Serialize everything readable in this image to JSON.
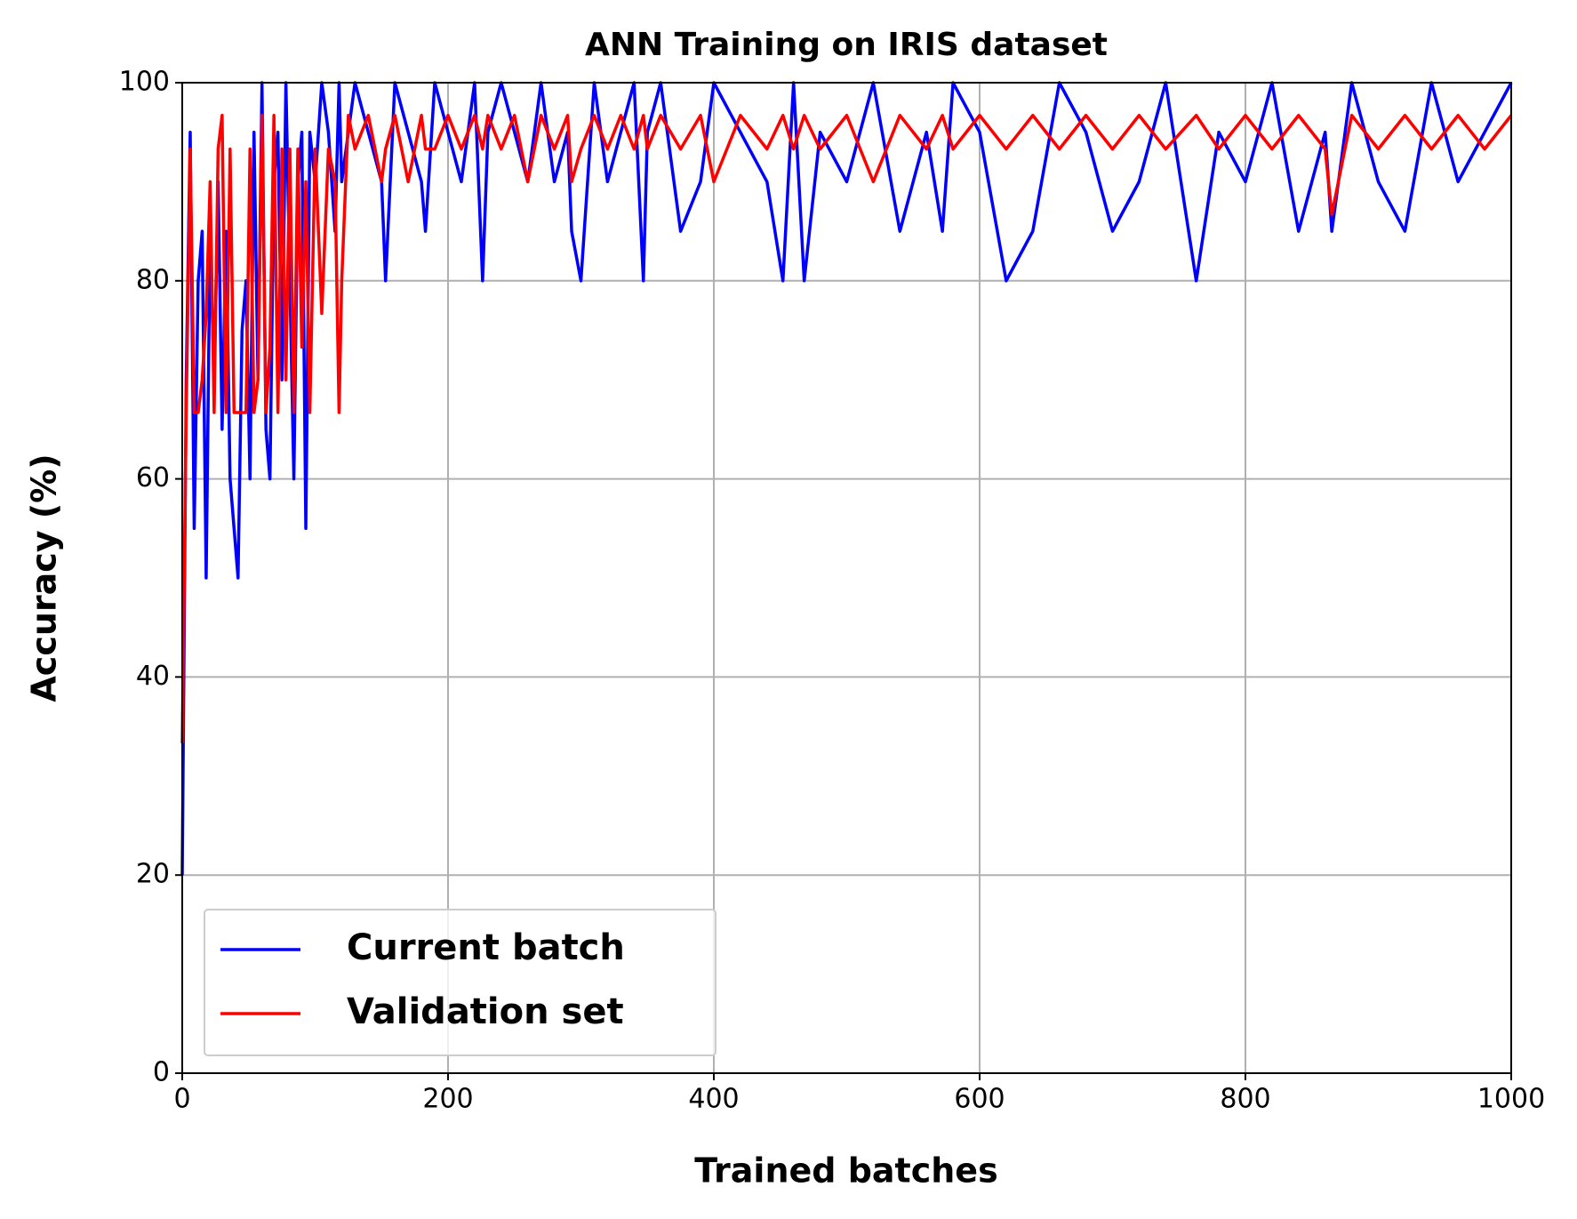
{
  "chart_data": {
    "type": "line",
    "title": "ANN Training on IRIS dataset",
    "x_label": "Trained batches",
    "y_label": "Accuracy (%)",
    "x": [
      0,
      3,
      6,
      9,
      12,
      15,
      18,
      21,
      24,
      27,
      30,
      33,
      36,
      39,
      42,
      45,
      48,
      51,
      54,
      57,
      60,
      63,
      66,
      69,
      72,
      75,
      78,
      81,
      84,
      87,
      90,
      93,
      96,
      100,
      105,
      110,
      115,
      118,
      120,
      125,
      130,
      140,
      150,
      153,
      160,
      170,
      180,
      183,
      190,
      200,
      210,
      220,
      226,
      230,
      240,
      250,
      260,
      270,
      280,
      290,
      293,
      300,
      310,
      320,
      330,
      340,
      347,
      350,
      360,
      375,
      390,
      400,
      420,
      440,
      452,
      460,
      468,
      480,
      500,
      520,
      540,
      560,
      572,
      580,
      600,
      620,
      640,
      660,
      680,
      700,
      720,
      740,
      763,
      780,
      800,
      820,
      840,
      860,
      865,
      880,
      900,
      920,
      940,
      960,
      980,
      1000
    ],
    "series": [
      {
        "name": "Current batch",
        "color": "#0000ff",
        "values": [
          20,
          70,
          95,
          55,
          80,
          85,
          50,
          85,
          70,
          90,
          65,
          85,
          60,
          55,
          50,
          75,
          80,
          60,
          95,
          70,
          100,
          65,
          60,
          90,
          95,
          70,
          100,
          80,
          60,
          90,
          95,
          55,
          95,
          90,
          100,
          95,
          85,
          100,
          90,
          95,
          100,
          95,
          90,
          80,
          100,
          95,
          90,
          85,
          100,
          95,
          90,
          100,
          80,
          95,
          100,
          95,
          90,
          100,
          90,
          95,
          85,
          80,
          100,
          90,
          95,
          100,
          80,
          95,
          100,
          85,
          90,
          100,
          95,
          90,
          80,
          100,
          80,
          95,
          90,
          100,
          85,
          95,
          85,
          100,
          95,
          80,
          85,
          100,
          95,
          85,
          90,
          100,
          80,
          95,
          90,
          100,
          85,
          95,
          85,
          100,
          90,
          85,
          100,
          90,
          95,
          100
        ]
      },
      {
        "name": "Validation set",
        "color": "#ff0000",
        "values": [
          33.3,
          66.7,
          93.3,
          66.7,
          66.7,
          70,
          76.7,
          90,
          66.7,
          93.3,
          96.7,
          66.7,
          93.3,
          66.7,
          66.7,
          66.7,
          66.7,
          93.3,
          66.7,
          70,
          96.7,
          66.7,
          73.3,
          96.7,
          66.7,
          93.3,
          70,
          93.3,
          66.7,
          93.3,
          73.3,
          90,
          66.7,
          93.3,
          76.7,
          93.3,
          90,
          66.7,
          80,
          96.7,
          93.3,
          96.7,
          90,
          93.3,
          96.7,
          90,
          96.7,
          93.3,
          93.3,
          96.7,
          93.3,
          96.7,
          93.3,
          96.7,
          93.3,
          96.7,
          90,
          96.7,
          93.3,
          96.7,
          90,
          93.3,
          96.7,
          93.3,
          96.7,
          93.3,
          96.7,
          93.3,
          96.7,
          93.3,
          96.7,
          90,
          96.7,
          93.3,
          96.7,
          93.3,
          96.7,
          93.3,
          96.7,
          90,
          96.7,
          93.3,
          96.7,
          93.3,
          96.7,
          93.3,
          96.7,
          93.3,
          96.7,
          93.3,
          96.7,
          93.3,
          96.7,
          93.3,
          96.7,
          93.3,
          96.7,
          93.3,
          86.7,
          96.7,
          93.3,
          96.7,
          93.3,
          96.7,
          93.3,
          96.7
        ]
      }
    ],
    "xlim": [
      0,
      1000
    ],
    "xticks": [
      0,
      200,
      400,
      600,
      800,
      1000
    ],
    "ylim": [
      0,
      100
    ],
    "yticks": [
      0,
      20,
      40,
      60,
      80,
      100
    ],
    "grid": true,
    "legend": "lower left"
  }
}
